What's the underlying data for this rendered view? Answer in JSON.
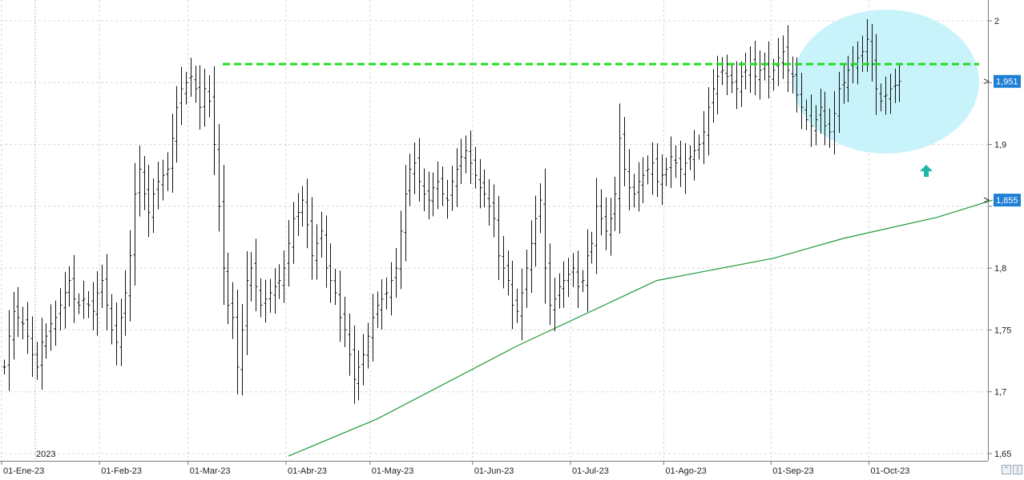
{
  "chart_data": {
    "type": "ohlc",
    "title": "",
    "y_axis": {
      "side": "right",
      "ylim": [
        1.645,
        2.015
      ],
      "ticks": [
        1.65,
        1.7,
        1.75,
        1.8,
        1.85,
        1.9,
        1.95,
        2
      ],
      "tick_labels": [
        "1,65",
        "1,7",
        "1,75",
        "1,8",
        "",
        "1,9",
        "",
        "2"
      ]
    },
    "x_axis": {
      "month_labels": [
        {
          "label": "01-Ene-23",
          "bar": 0
        },
        {
          "label": "01-Feb-23",
          "bar": 21
        },
        {
          "label": "01-Mar-23",
          "bar": 40
        },
        {
          "label": "01-Abr-23",
          "bar": 61
        },
        {
          "label": "01-May-23",
          "bar": 79
        },
        {
          "label": "01-Jun-23",
          "bar": 101
        },
        {
          "label": "01-Jul-23",
          "bar": 122
        },
        {
          "label": "01-Ago-23",
          "bar": 142
        },
        {
          "label": "01-Sep-23",
          "bar": 165
        },
        {
          "label": "01-Oct-23",
          "bar": 186
        }
      ],
      "year_label": "2023"
    },
    "grid": true,
    "price_bars_close": [
      1.72,
      1.745,
      1.765,
      1.76,
      1.755,
      1.745,
      1.73,
      1.72,
      1.74,
      1.745,
      1.755,
      1.76,
      1.77,
      1.78,
      1.79,
      1.775,
      1.77,
      1.775,
      1.77,
      1.765,
      1.78,
      1.79,
      1.77,
      1.75,
      1.74,
      1.76,
      1.78,
      1.81,
      1.86,
      1.88,
      1.86,
      1.845,
      1.86,
      1.87,
      1.875,
      1.88,
      1.905,
      1.93,
      1.945,
      1.95,
      1.955,
      1.945,
      1.93,
      1.945,
      1.935,
      1.9,
      1.85,
      1.8,
      1.77,
      1.76,
      1.72,
      1.75,
      1.79,
      1.8,
      1.785,
      1.77,
      1.775,
      1.78,
      1.785,
      1.79,
      1.8,
      1.82,
      1.84,
      1.845,
      1.855,
      1.835,
      1.81,
      1.82,
      1.83,
      1.8,
      1.79,
      1.78,
      1.76,
      1.75,
      1.73,
      1.71,
      1.72,
      1.73,
      1.745,
      1.76,
      1.77,
      1.775,
      1.78,
      1.79,
      1.8,
      1.83,
      1.86,
      1.88,
      1.885,
      1.87,
      1.86,
      1.855,
      1.865,
      1.87,
      1.86,
      1.855,
      1.87,
      1.88,
      1.89,
      1.895,
      1.885,
      1.875,
      1.865,
      1.86,
      1.85,
      1.84,
      1.81,
      1.8,
      1.79,
      1.77,
      1.765,
      1.78,
      1.8,
      1.82,
      1.84,
      1.855,
      1.8,
      1.77,
      1.775,
      1.785,
      1.79,
      1.795,
      1.8,
      1.785,
      1.79,
      1.81,
      1.82,
      1.85,
      1.84,
      1.83,
      1.84,
      1.86,
      1.905,
      1.88,
      1.865,
      1.86,
      1.87,
      1.875,
      1.88,
      1.885,
      1.87,
      1.875,
      1.88,
      1.89,
      1.885,
      1.88,
      1.885,
      1.89,
      1.895,
      1.9,
      1.91,
      1.93,
      1.945,
      1.955,
      1.96,
      1.955,
      1.95,
      1.945,
      1.955,
      1.96,
      1.965,
      1.955,
      1.96,
      1.965,
      1.955,
      1.96,
      1.97,
      1.975,
      1.96,
      1.955,
      1.94,
      1.93,
      1.92,
      1.915,
      1.92,
      1.93,
      1.915,
      1.91,
      1.925,
      1.945,
      1.95,
      1.96,
      1.965,
      1.97,
      1.975,
      1.985,
      1.965,
      1.945,
      1.935,
      1.94,
      1.945,
      1.948,
      1.951
    ],
    "series": [
      {
        "name": "",
        "type": "moving_average",
        "color": "#1d9a3a",
        "points": [
          [
            61,
            1.648
          ],
          [
            80,
            1.678
          ],
          [
            110,
            1.737
          ],
          [
            140,
            1.79
          ],
          [
            165,
            1.808
          ],
          [
            180,
            1.824
          ],
          [
            200,
            1.841
          ],
          [
            212,
            1.855
          ]
        ]
      }
    ],
    "annotations": {
      "resistance_level": 1.965,
      "resistance_color": "#22dd22",
      "highlight_ellipse_color": "#c9f3fa",
      "arrow_color": "#1fb5a8",
      "last_price_label": "1,951",
      "last_price_value": 1.951,
      "ma_label": "1,855",
      "ma_value": 1.855,
      "marker_color": "#1f7fd4"
    }
  }
}
